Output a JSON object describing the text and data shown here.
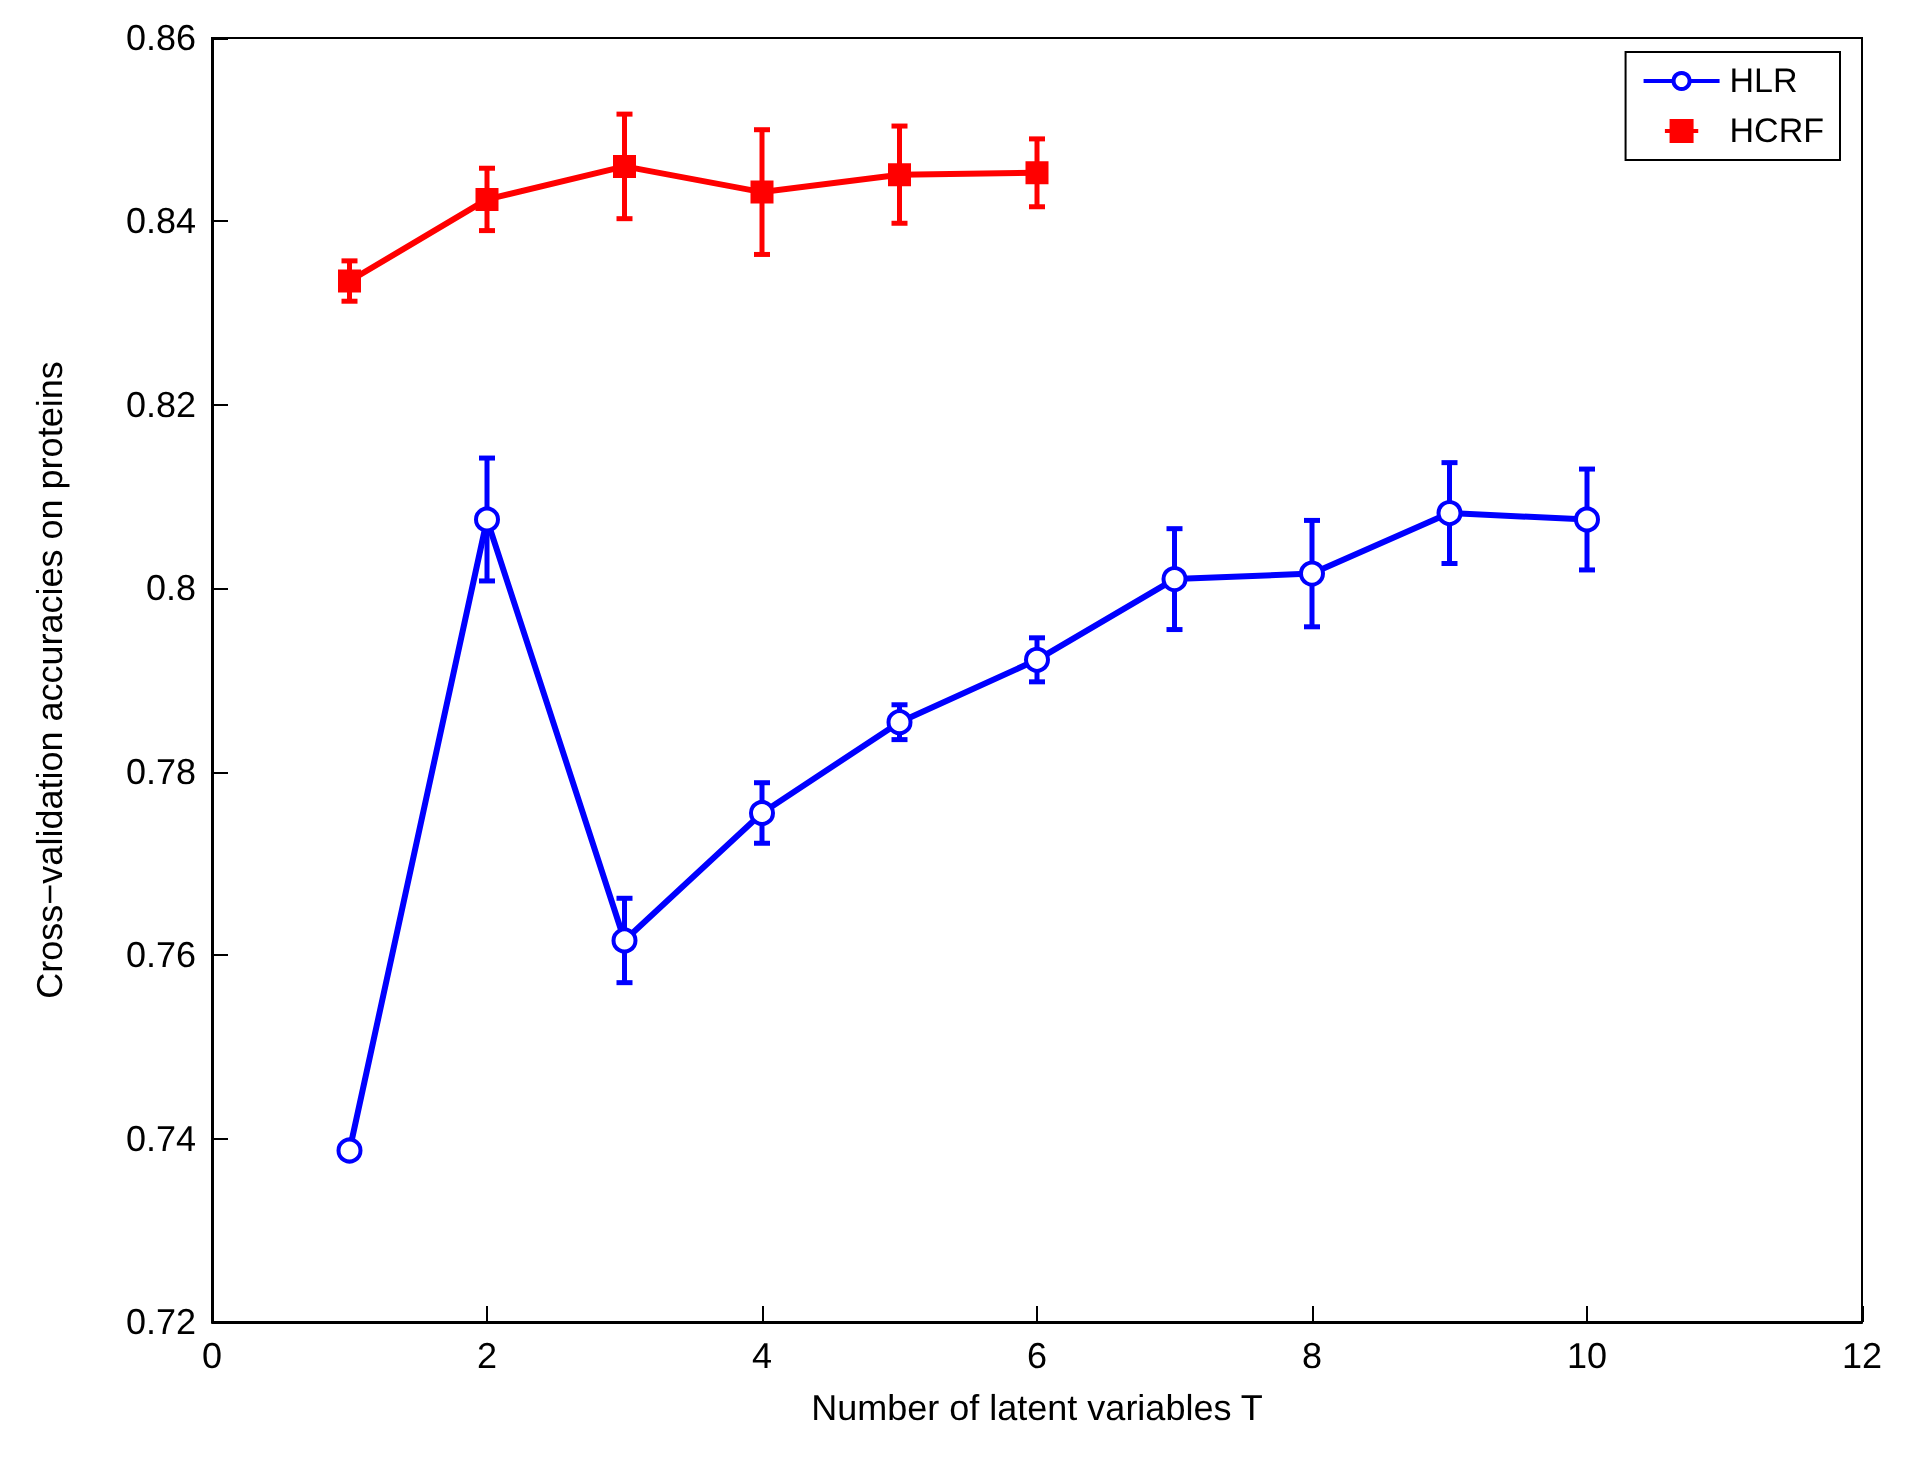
{
  "chart_data": {
    "type": "line",
    "xlabel": "Number of latent variables T",
    "ylabel": "Cross−validation accuracies on proteins",
    "x": [
      1,
      2,
      3,
      4,
      5,
      6,
      7,
      8,
      9,
      10
    ],
    "xlim": [
      0,
      12
    ],
    "xticks": [
      0,
      2,
      4,
      6,
      8,
      10,
      12
    ],
    "ylim": [
      0.72,
      0.86
    ],
    "yticks": [
      0.72,
      0.74,
      0.76,
      0.78,
      0.8,
      0.82,
      0.84,
      0.86
    ],
    "grid": false,
    "legend": "top right",
    "line_style": "solid",
    "series": [
      {
        "name": "HLR",
        "color": "#0000ff",
        "marker": "circle",
        "values": [
          0.7387,
          0.8075,
          0.7616,
          0.7755,
          0.7854,
          0.7922,
          0.801,
          0.8016,
          0.8082,
          0.8075
        ],
        "errors": [
          null,
          0.0067,
          0.0046,
          0.0033,
          0.0019,
          0.0024,
          0.0055,
          0.0058,
          0.0055,
          0.0055
        ]
      },
      {
        "name": "HCRF",
        "color": "#ff0000",
        "marker": "square",
        "x": [
          1,
          2,
          3,
          4,
          5,
          6
        ],
        "values": [
          0.8335,
          0.8424,
          0.846,
          0.8432,
          0.8451,
          0.8453
        ],
        "errors": [
          0.0022,
          0.0034,
          0.0057,
          0.0068,
          0.0053,
          0.0037
        ]
      }
    ]
  }
}
